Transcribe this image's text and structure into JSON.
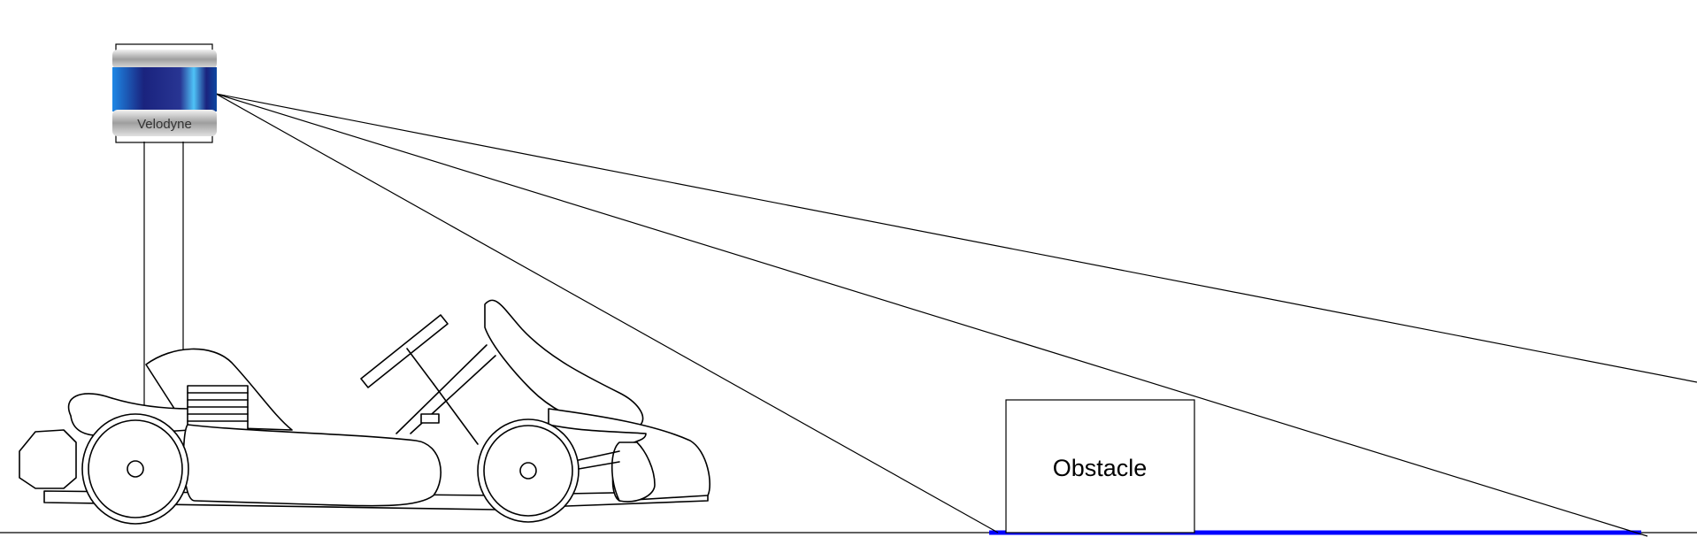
{
  "sensor": {
    "brand_label": "Velodyne"
  },
  "obstacle": {
    "label": "Obstacle"
  },
  "colors": {
    "line": "#000000",
    "ground_highlight": "#0000ff",
    "sensor_blue_dark": "#1a237e",
    "sensor_blue_light": "#29b6f6",
    "sensor_silver": "#b0b0b0"
  }
}
